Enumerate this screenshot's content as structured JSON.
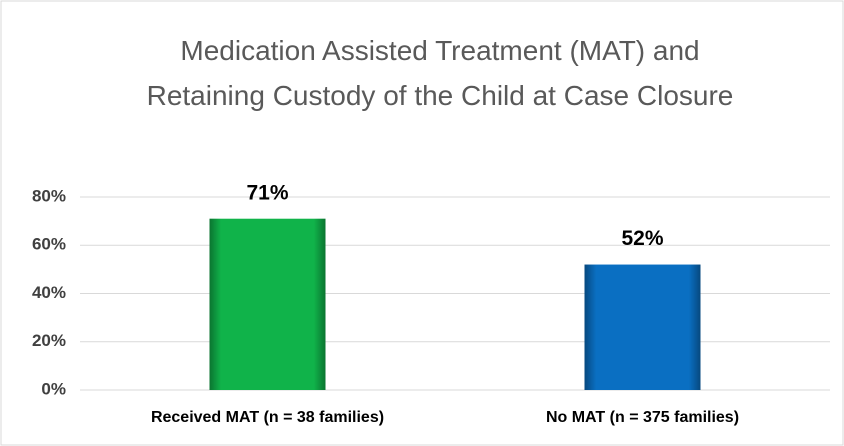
{
  "chart_data": {
    "type": "bar",
    "title": "Medication Assisted Treatment (MAT) and Retaining Custody of the Child at Case Closure",
    "categories": [
      "Received MAT (n = 38 families)",
      "No MAT (n = 375 families)"
    ],
    "values": [
      71,
      52
    ],
    "value_labels": [
      "71%",
      "52%"
    ],
    "colors": [
      "#10b34a",
      "#0a6fc2"
    ],
    "ylim": [
      0,
      80
    ],
    "yticks": [
      {
        "value": 0,
        "label": "0%"
      },
      {
        "value": 20,
        "label": "20%"
      },
      {
        "value": 40,
        "label": "40%"
      },
      {
        "value": 60,
        "label": "60%"
      },
      {
        "value": 80,
        "label": "80%"
      }
    ],
    "grid": true
  }
}
